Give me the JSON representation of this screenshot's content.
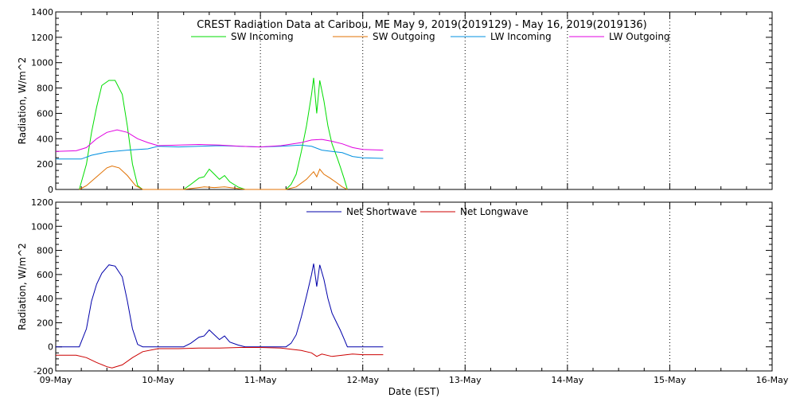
{
  "title": "CREST Radiation Data at Caribou, ME   May  9, 2019(2019129) - May 16, 2019(2019136)",
  "xlabel": "Date (EST)",
  "x_tick_labels": [
    "09-May",
    "10-May",
    "11-May",
    "12-May",
    "13-May",
    "14-May",
    "15-May",
    "16-May"
  ],
  "chart_data": [
    {
      "type": "line",
      "ylabel": "Radiation, W/m^2",
      "xlim": [
        0,
        7
      ],
      "ylim": [
        0,
        1400
      ],
      "y_ticks": [
        0,
        200,
        400,
        600,
        800,
        1000,
        1200,
        1400
      ],
      "grid": true,
      "legend_position": "top",
      "series": [
        {
          "name": "SW Incoming",
          "color": "#00dd00",
          "points": [
            [
              0.23,
              0
            ],
            [
              0.3,
              200
            ],
            [
              0.35,
              450
            ],
            [
              0.4,
              650
            ],
            [
              0.45,
              820
            ],
            [
              0.52,
              860
            ],
            [
              0.58,
              860
            ],
            [
              0.65,
              750
            ],
            [
              0.7,
              500
            ],
            [
              0.75,
              200
            ],
            [
              0.8,
              30
            ],
            [
              0.85,
              0
            ],
            [
              1.25,
              0
            ],
            [
              1.32,
              40
            ],
            [
              1.4,
              90
            ],
            [
              1.45,
              100
            ],
            [
              1.5,
              160
            ],
            [
              1.55,
              120
            ],
            [
              1.6,
              80
            ],
            [
              1.65,
              110
            ],
            [
              1.7,
              60
            ],
            [
              1.78,
              20
            ],
            [
              1.85,
              0
            ],
            [
              2.25,
              0
            ],
            [
              2.3,
              40
            ],
            [
              2.35,
              120
            ],
            [
              2.4,
              300
            ],
            [
              2.45,
              500
            ],
            [
              2.5,
              750
            ],
            [
              2.52,
              880
            ],
            [
              2.55,
              600
            ],
            [
              2.58,
              860
            ],
            [
              2.62,
              700
            ],
            [
              2.66,
              500
            ],
            [
              2.7,
              360
            ],
            [
              2.75,
              250
            ],
            [
              2.78,
              180
            ],
            [
              2.82,
              80
            ],
            [
              2.85,
              0
            ]
          ]
        },
        {
          "name": "SW Outgoing",
          "color": "#e07000",
          "points": [
            [
              0.23,
              0
            ],
            [
              0.3,
              30
            ],
            [
              0.4,
              100
            ],
            [
              0.5,
              170
            ],
            [
              0.55,
              185
            ],
            [
              0.62,
              170
            ],
            [
              0.7,
              110
            ],
            [
              0.78,
              30
            ],
            [
              0.85,
              0
            ],
            [
              1.25,
              0
            ],
            [
              1.35,
              10
            ],
            [
              1.45,
              20
            ],
            [
              1.55,
              15
            ],
            [
              1.65,
              20
            ],
            [
              1.75,
              10
            ],
            [
              1.85,
              0
            ],
            [
              2.25,
              0
            ],
            [
              2.35,
              20
            ],
            [
              2.45,
              80
            ],
            [
              2.52,
              140
            ],
            [
              2.55,
              100
            ],
            [
              2.58,
              160
            ],
            [
              2.62,
              120
            ],
            [
              2.68,
              90
            ],
            [
              2.75,
              50
            ],
            [
              2.8,
              20
            ],
            [
              2.85,
              0
            ]
          ]
        },
        {
          "name": "LW Incoming",
          "color": "#0090e0",
          "points": [
            [
              0,
              240
            ],
            [
              0.25,
              240
            ],
            [
              0.35,
              270
            ],
            [
              0.5,
              295
            ],
            [
              0.7,
              310
            ],
            [
              0.9,
              320
            ],
            [
              1,
              340
            ],
            [
              1.2,
              335
            ],
            [
              1.4,
              340
            ],
            [
              1.6,
              345
            ],
            [
              1.8,
              340
            ],
            [
              2,
              335
            ],
            [
              2.2,
              340
            ],
            [
              2.4,
              350
            ],
            [
              2.5,
              340
            ],
            [
              2.6,
              310
            ],
            [
              2.7,
              300
            ],
            [
              2.8,
              290
            ],
            [
              2.9,
              260
            ],
            [
              3.0,
              250
            ],
            [
              3.2,
              245
            ]
          ]
        },
        {
          "name": "LW Outgoing",
          "color": "#e000e0",
          "points": [
            [
              0,
              300
            ],
            [
              0.2,
              305
            ],
            [
              0.3,
              330
            ],
            [
              0.4,
              400
            ],
            [
              0.5,
              450
            ],
            [
              0.6,
              470
            ],
            [
              0.7,
              450
            ],
            [
              0.8,
              400
            ],
            [
              0.9,
              370
            ],
            [
              1,
              345
            ],
            [
              1.2,
              350
            ],
            [
              1.4,
              355
            ],
            [
              1.6,
              350
            ],
            [
              1.8,
              340
            ],
            [
              2,
              335
            ],
            [
              2.2,
              345
            ],
            [
              2.4,
              370
            ],
            [
              2.5,
              390
            ],
            [
              2.6,
              395
            ],
            [
              2.7,
              380
            ],
            [
              2.8,
              360
            ],
            [
              2.9,
              330
            ],
            [
              3.0,
              315
            ],
            [
              3.2,
              310
            ]
          ]
        }
      ]
    },
    {
      "type": "line",
      "ylabel": "Radiation, W/m^2",
      "xlim": [
        0,
        7
      ],
      "ylim": [
        -200,
        1200
      ],
      "y_ticks": [
        -200,
        0,
        200,
        400,
        600,
        800,
        1000,
        1200
      ],
      "grid": true,
      "legend_position": "top",
      "series": [
        {
          "name": "Net Shortwave",
          "color": "#0000aa",
          "points": [
            [
              0,
              0
            ],
            [
              0.23,
              0
            ],
            [
              0.3,
              150
            ],
            [
              0.35,
              380
            ],
            [
              0.4,
              520
            ],
            [
              0.45,
              610
            ],
            [
              0.52,
              680
            ],
            [
              0.58,
              670
            ],
            [
              0.65,
              580
            ],
            [
              0.7,
              380
            ],
            [
              0.75,
              150
            ],
            [
              0.8,
              20
            ],
            [
              0.85,
              0
            ],
            [
              1.25,
              0
            ],
            [
              1.32,
              30
            ],
            [
              1.4,
              80
            ],
            [
              1.45,
              90
            ],
            [
              1.5,
              140
            ],
            [
              1.55,
              100
            ],
            [
              1.6,
              60
            ],
            [
              1.65,
              90
            ],
            [
              1.7,
              40
            ],
            [
              1.78,
              15
            ],
            [
              1.85,
              0
            ],
            [
              2.25,
              0
            ],
            [
              2.3,
              30
            ],
            [
              2.35,
              100
            ],
            [
              2.4,
              250
            ],
            [
              2.45,
              420
            ],
            [
              2.5,
              600
            ],
            [
              2.52,
              690
            ],
            [
              2.55,
              500
            ],
            [
              2.58,
              680
            ],
            [
              2.62,
              560
            ],
            [
              2.66,
              400
            ],
            [
              2.7,
              280
            ],
            [
              2.75,
              190
            ],
            [
              2.78,
              140
            ],
            [
              2.82,
              60
            ],
            [
              2.85,
              0
            ],
            [
              3.2,
              0
            ]
          ]
        },
        {
          "name": "Net Longwave",
          "color": "#cc0000",
          "points": [
            [
              0,
              -70
            ],
            [
              0.2,
              -70
            ],
            [
              0.3,
              -90
            ],
            [
              0.4,
              -130
            ],
            [
              0.5,
              -165
            ],
            [
              0.55,
              -175
            ],
            [
              0.65,
              -150
            ],
            [
              0.75,
              -90
            ],
            [
              0.85,
              -40
            ],
            [
              1,
              -15
            ],
            [
              1.2,
              -15
            ],
            [
              1.4,
              -10
            ],
            [
              1.6,
              -10
            ],
            [
              1.8,
              -5
            ],
            [
              2,
              -5
            ],
            [
              2.2,
              -10
            ],
            [
              2.3,
              -20
            ],
            [
              2.4,
              -30
            ],
            [
              2.5,
              -50
            ],
            [
              2.55,
              -80
            ],
            [
              2.6,
              -60
            ],
            [
              2.7,
              -80
            ],
            [
              2.8,
              -70
            ],
            [
              2.9,
              -60
            ],
            [
              3.0,
              -65
            ],
            [
              3.2,
              -65
            ]
          ]
        }
      ]
    }
  ]
}
